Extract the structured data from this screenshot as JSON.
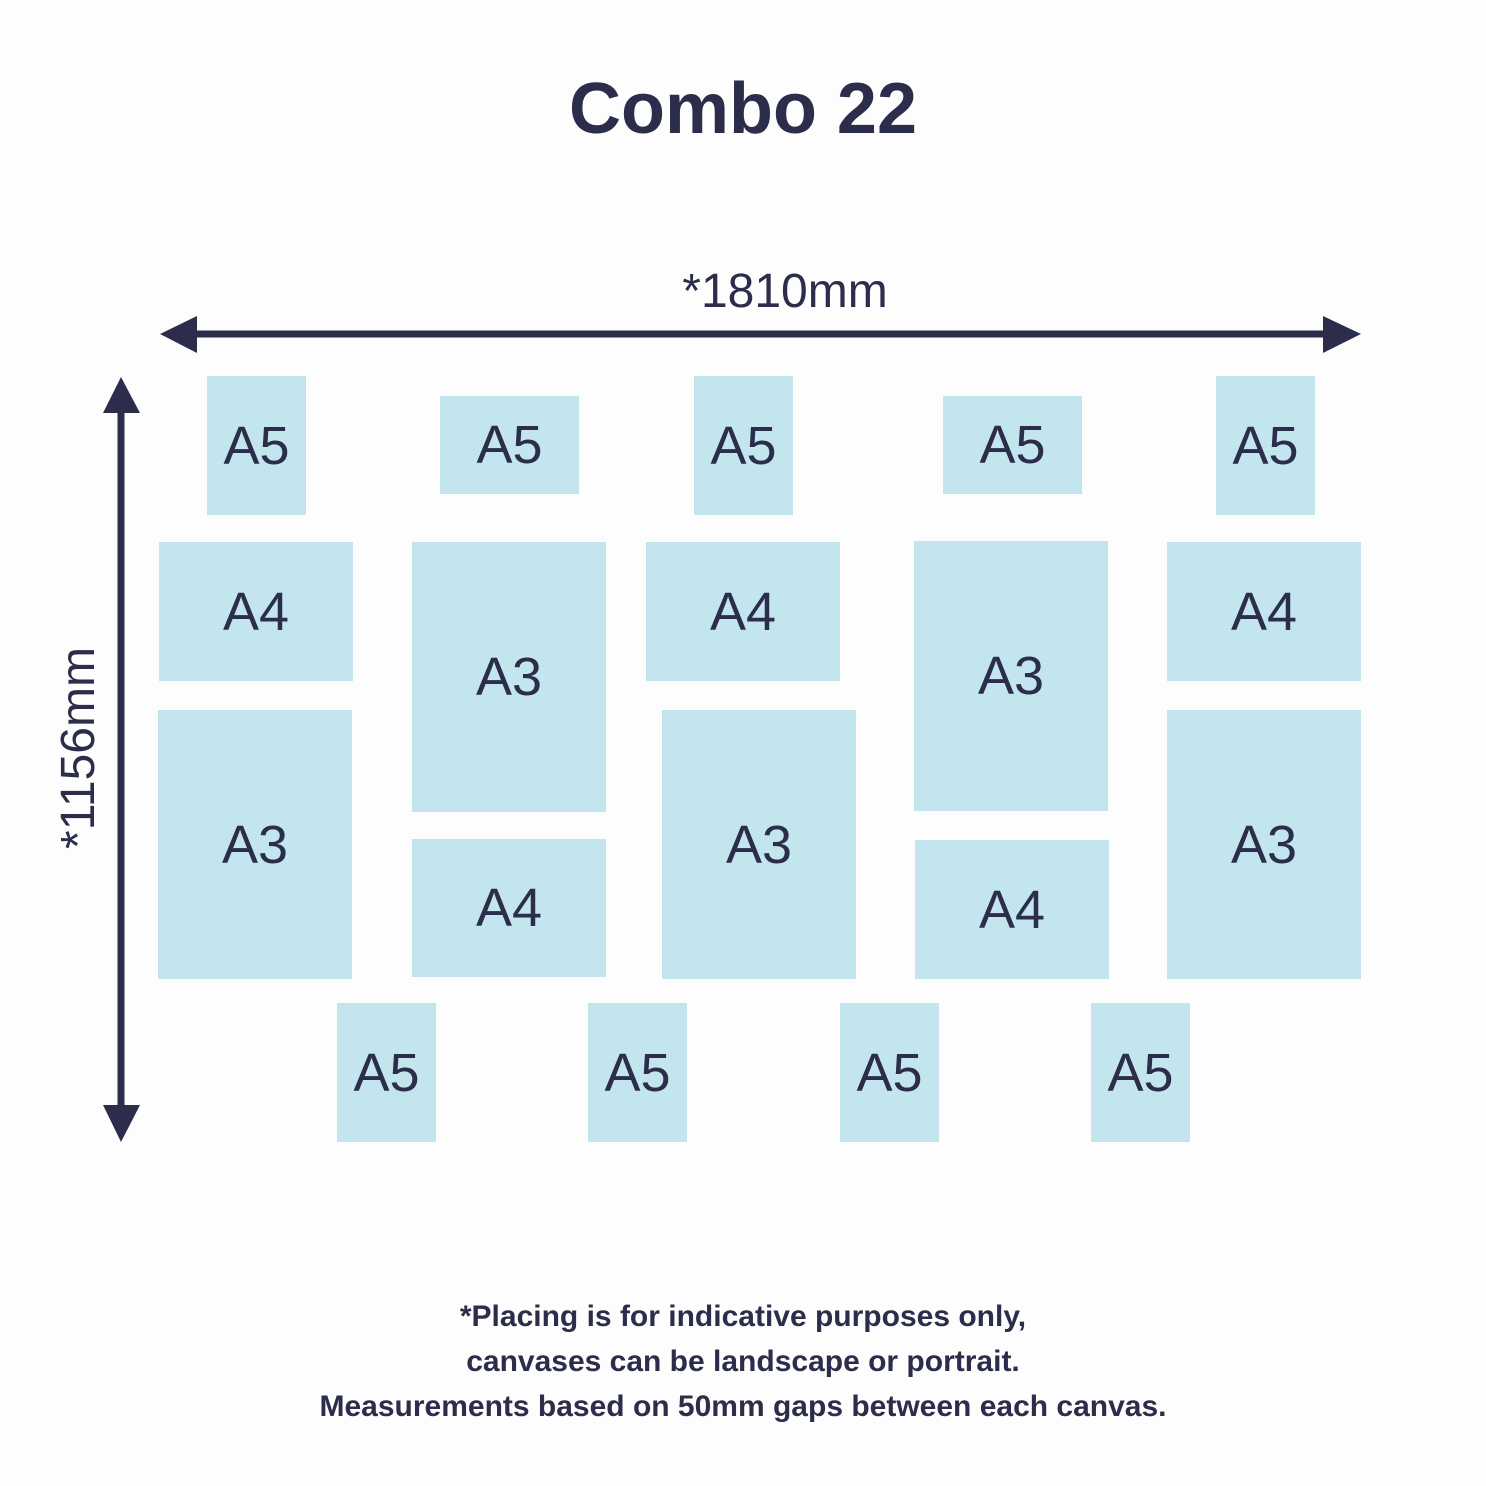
{
  "title": "Combo 22",
  "width_label": "*1810mm",
  "height_label": "*1156mm",
  "canvases": [
    {
      "label": "A5"
    },
    {
      "label": "A5"
    },
    {
      "label": "A5"
    },
    {
      "label": "A5"
    },
    {
      "label": "A5"
    },
    {
      "label": "A4"
    },
    {
      "label": "A4"
    },
    {
      "label": "A4"
    },
    {
      "label": "A3"
    },
    {
      "label": "A3"
    },
    {
      "label": "A3"
    },
    {
      "label": "A3"
    },
    {
      "label": "A3"
    },
    {
      "label": "A4"
    },
    {
      "label": "A4"
    },
    {
      "label": "A5"
    },
    {
      "label": "A5"
    },
    {
      "label": "A5"
    },
    {
      "label": "A5"
    }
  ],
  "notes": [
    "*Placing is for indicative purposes only,",
    "canvases can be landscape or portrait.",
    "Measurements based on 50mm gaps between each canvas."
  ],
  "colors": {
    "ink": "#2b2d4a",
    "canvas": "#c3e6ee"
  }
}
